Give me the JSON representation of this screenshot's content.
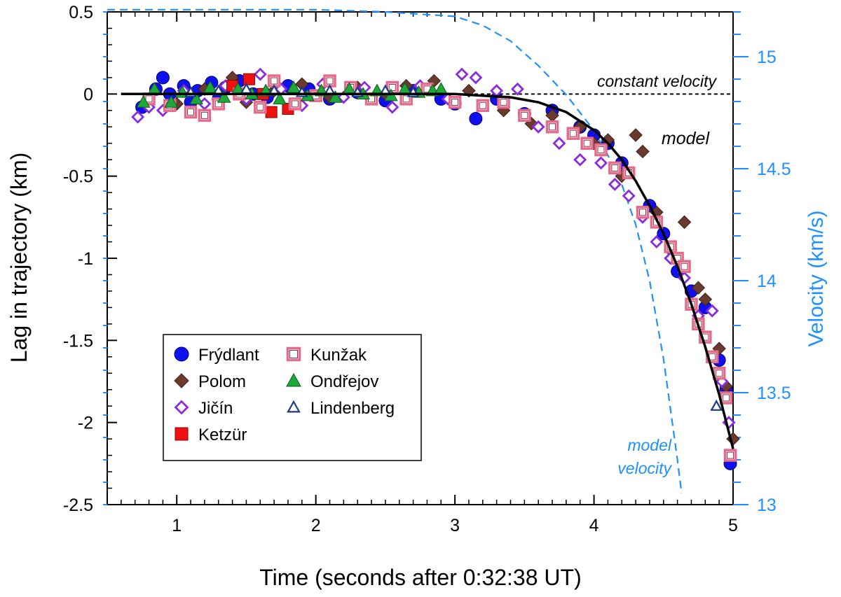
{
  "chart_data": {
    "type": "scatter",
    "title": "",
    "xlabel": "Time (seconds after 0:32:38 UT)",
    "ylabel": "Lag in trajectory (km)",
    "y2label": "Velocity (km/s)",
    "xlim": [
      0.5,
      5.0
    ],
    "ylim": [
      -2.5,
      0.5
    ],
    "y2lim": [
      13.0,
      15.2
    ],
    "xticks": [
      1,
      2,
      3,
      4,
      5
    ],
    "xtick_labels": [
      "1",
      "2",
      "3",
      "4",
      "5"
    ],
    "yticks": [
      0.5,
      0,
      -0.5,
      -1,
      -1.5,
      -2,
      -2.5
    ],
    "ytick_labels": [
      "0.5",
      "0",
      "-0.5",
      "-1",
      "-1.5",
      "-2",
      "-2.5"
    ],
    "y2ticks": [
      15,
      14.5,
      14,
      13.5,
      13
    ],
    "y2tick_labels": [
      "15",
      "14.5",
      "14",
      "13.5",
      "13"
    ],
    "legend_position": "bottom-left",
    "annotations": {
      "constant_velocity": "constant velocity",
      "model": "model",
      "model_velocity_line1": "model",
      "model_velocity_line2": "velocity"
    },
    "colors": {
      "velocity_axis": "#1e90ff",
      "model_line": "#000000",
      "constant_line": "#000000"
    },
    "constant_velocity_line": {
      "y": 0,
      "x_range": [
        0.6,
        5.0
      ]
    },
    "model_curve": {
      "x": [
        0.6,
        1.0,
        1.5,
        2.0,
        2.5,
        3.0,
        3.2,
        3.4,
        3.6,
        3.8,
        4.0,
        4.1,
        4.2,
        4.3,
        4.4,
        4.5,
        4.6,
        4.7,
        4.8,
        4.9,
        5.0
      ],
      "y": [
        0.0,
        0.0,
        0.0,
        0.0,
        0.0,
        0.0,
        -0.01,
        -0.02,
        -0.05,
        -0.11,
        -0.22,
        -0.3,
        -0.4,
        -0.53,
        -0.68,
        -0.85,
        -1.05,
        -1.28,
        -1.54,
        -1.83,
        -2.16
      ]
    },
    "model_velocity": {
      "x": [
        0.5,
        1.0,
        1.5,
        2.0,
        2.5,
        3.0,
        3.2,
        3.4,
        3.6,
        3.8,
        4.0,
        4.1,
        4.2,
        4.3,
        4.4,
        4.5,
        4.6,
        4.63
      ],
      "v": [
        15.21,
        15.21,
        15.21,
        15.21,
        15.2,
        15.18,
        15.14,
        15.07,
        14.96,
        14.83,
        14.67,
        14.56,
        14.43,
        14.25,
        14.0,
        13.65,
        13.2,
        13.05
      ]
    },
    "series": [
      {
        "name": "Frýdlant",
        "marker": "circle",
        "fill": "#1010ee",
        "stroke": "#00006a",
        "x": [
          0.75,
          0.85,
          0.9,
          0.95,
          1.05,
          1.1,
          1.15,
          1.25,
          1.3,
          1.35,
          1.45,
          1.55,
          1.65,
          1.8,
          1.95,
          2.1,
          2.3,
          2.5,
          2.7,
          2.9,
          3.0,
          3.15,
          3.3,
          3.5,
          3.7,
          3.9,
          4.0,
          4.1,
          4.2,
          4.4,
          4.5,
          4.6,
          4.7,
          4.8,
          4.9,
          4.95,
          4.98
        ],
        "y": [
          -0.08,
          0.03,
          0.1,
          0.0,
          0.05,
          -0.05,
          0.02,
          0.07,
          -0.03,
          0.04,
          0.08,
          0.0,
          -0.02,
          0.05,
          0.03,
          -0.03,
          0.01,
          -0.04,
          0.02,
          -0.03,
          -0.06,
          -0.15,
          -0.03,
          -0.12,
          -0.1,
          -0.2,
          -0.25,
          -0.3,
          -0.42,
          -0.68,
          -0.85,
          -1.08,
          -1.2,
          -1.3,
          -1.62,
          -1.8,
          -2.25
        ]
      },
      {
        "name": "Polom",
        "marker": "diamond",
        "fill": "#6b3a2e",
        "stroke": "#3a1f18",
        "x": [
          1.0,
          1.2,
          1.4,
          1.5,
          1.7,
          1.9,
          2.1,
          2.3,
          2.5,
          2.65,
          2.85,
          3.1,
          3.35,
          3.55,
          3.7,
          3.9,
          4.0,
          4.1,
          4.2,
          4.3,
          4.35,
          4.45,
          4.55,
          4.65,
          4.75,
          4.8,
          4.9,
          4.95,
          5.0
        ],
        "y": [
          -0.06,
          0.03,
          0.1,
          -0.05,
          0.02,
          0.06,
          -0.02,
          0.04,
          0.0,
          0.05,
          0.08,
          0.02,
          -0.1,
          -0.18,
          -0.13,
          -0.2,
          -0.3,
          -0.28,
          -0.5,
          -0.25,
          -0.35,
          -0.72,
          -0.95,
          -0.78,
          -1.18,
          -1.25,
          -1.55,
          -1.78,
          -2.1
        ]
      },
      {
        "name": "Jičín",
        "marker": "diamond-open",
        "fill": "#ffffff",
        "stroke": "#8a2be2",
        "x": [
          0.72,
          0.8,
          0.9,
          1.05,
          1.2,
          1.35,
          1.5,
          1.6,
          1.75,
          1.9,
          2.05,
          2.2,
          2.35,
          2.55,
          2.75,
          2.95,
          3.05,
          3.15,
          3.3,
          3.45,
          3.6,
          3.75,
          3.9,
          4.05,
          4.15,
          4.25,
          4.35,
          4.45,
          4.55,
          4.65,
          4.75,
          4.85,
          4.92,
          4.97
        ],
        "y": [
          -0.14,
          -0.08,
          -0.1,
          0.02,
          -0.06,
          0.05,
          -0.03,
          0.12,
          0.03,
          -0.07,
          0.06,
          -0.02,
          0.04,
          -0.08,
          0.05,
          -0.03,
          0.12,
          0.1,
          0.02,
          0.03,
          -0.2,
          -0.3,
          -0.4,
          -0.42,
          -0.55,
          -0.62,
          -0.75,
          -0.9,
          -1.0,
          -1.12,
          -1.35,
          -1.32,
          -1.75,
          -2.0
        ]
      },
      {
        "name": "Ketzür",
        "marker": "square",
        "fill": "#ee1111",
        "stroke": "#8b0000",
        "x": [
          1.4,
          1.52,
          1.62,
          1.68,
          1.8
        ],
        "y": [
          0.05,
          0.09,
          0.0,
          -0.11,
          -0.09
        ]
      },
      {
        "name": "Kunžak",
        "marker": "square-open",
        "fill": "#ffffff",
        "stroke": "#e86a8a",
        "x": [
          0.8,
          0.95,
          1.1,
          1.2,
          1.3,
          1.45,
          1.6,
          1.7,
          1.85,
          2.0,
          2.1,
          2.25,
          2.4,
          2.55,
          2.65,
          2.8,
          3.0,
          3.2,
          3.35,
          3.5,
          3.7,
          3.85,
          3.95,
          4.05,
          4.15,
          4.25,
          4.35,
          4.45,
          4.55,
          4.6,
          4.65,
          4.7,
          4.75,
          4.8,
          4.85,
          4.9,
          4.95,
          4.98
        ],
        "y": [
          -0.03,
          -0.07,
          -0.11,
          -0.13,
          -0.06,
          0.0,
          -0.08,
          0.08,
          -0.06,
          -0.01,
          0.08,
          0.04,
          -0.03,
          0.04,
          -0.03,
          0.03,
          -0.05,
          -0.07,
          -0.05,
          -0.13,
          -0.2,
          -0.24,
          -0.3,
          -0.34,
          -0.45,
          -0.48,
          -0.72,
          -0.78,
          -0.93,
          -1.0,
          -1.05,
          -1.28,
          -1.4,
          -1.48,
          -1.6,
          -1.7,
          -1.85,
          -2.2
        ]
      },
      {
        "name": "Ondřejov",
        "marker": "triangle",
        "fill": "#1ea83a",
        "stroke": "#0d5a1c",
        "x": [
          0.76,
          0.84,
          0.96,
          1.04,
          1.14,
          1.24,
          1.34,
          1.44,
          1.54,
          1.64,
          1.74,
          1.84,
          1.94,
          2.04,
          2.14,
          2.24,
          2.34,
          2.44,
          2.54,
          2.64,
          2.74,
          2.84,
          2.9
        ],
        "y": [
          -0.05,
          0.03,
          -0.05,
          0.01,
          -0.03,
          0.04,
          -0.02,
          0.03,
          0.0,
          0.02,
          -0.03,
          0.04,
          -0.01,
          0.02,
          -0.02,
          0.03,
          0.0,
          0.02,
          -0.01,
          0.03,
          0.01,
          0.02,
          0.03
        ]
      },
      {
        "name": "Lindenberg",
        "marker": "triangle-open",
        "fill": "#ffffff",
        "stroke": "#1a3a8a",
        "x": [
          1.1,
          1.3,
          1.5,
          1.7,
          1.9,
          2.1,
          2.3,
          2.5,
          2.7,
          4.88
        ],
        "y": [
          0.01,
          0.02,
          0.03,
          0.02,
          0.01,
          0.02,
          0.01,
          0.02,
          0.01,
          -1.9
        ]
      }
    ]
  }
}
